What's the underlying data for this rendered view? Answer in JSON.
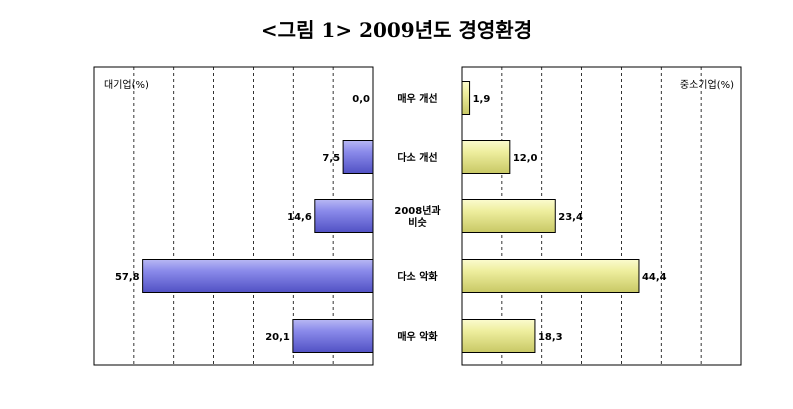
{
  "title": "<그림 1> 2009년도 경영환경",
  "chart_data": [
    {
      "type": "bar",
      "orientation": "horizontal",
      "direction": "right-to-left",
      "panel_label": "대기업(%)",
      "categories": [
        "매우 개선",
        "다소 개선",
        "2008년과\n비슷",
        "다소 악화",
        "매우 악화"
      ],
      "values": [
        0.0,
        7.5,
        14.6,
        57.8,
        20.1
      ],
      "value_labels": [
        "0,0",
        "7,5",
        "14,6",
        "57,8",
        "20,1"
      ],
      "xlim": [
        0,
        70
      ],
      "grid": true,
      "bar_color": "#7b7be3"
    },
    {
      "type": "bar",
      "orientation": "horizontal",
      "direction": "left-to-right",
      "panel_label": "중소기업(%)",
      "categories": [
        "매우 개선",
        "다소 개선",
        "2008년과\n비슷",
        "다소 악화",
        "매우 악화"
      ],
      "values": [
        1.9,
        12.0,
        23.4,
        44.4,
        18.3
      ],
      "value_labels": [
        "1,9",
        "12,0",
        "23,4",
        "44,4",
        "18,3"
      ],
      "xlim": [
        0,
        70
      ],
      "grid": true,
      "bar_color": "#e6e68a"
    }
  ]
}
